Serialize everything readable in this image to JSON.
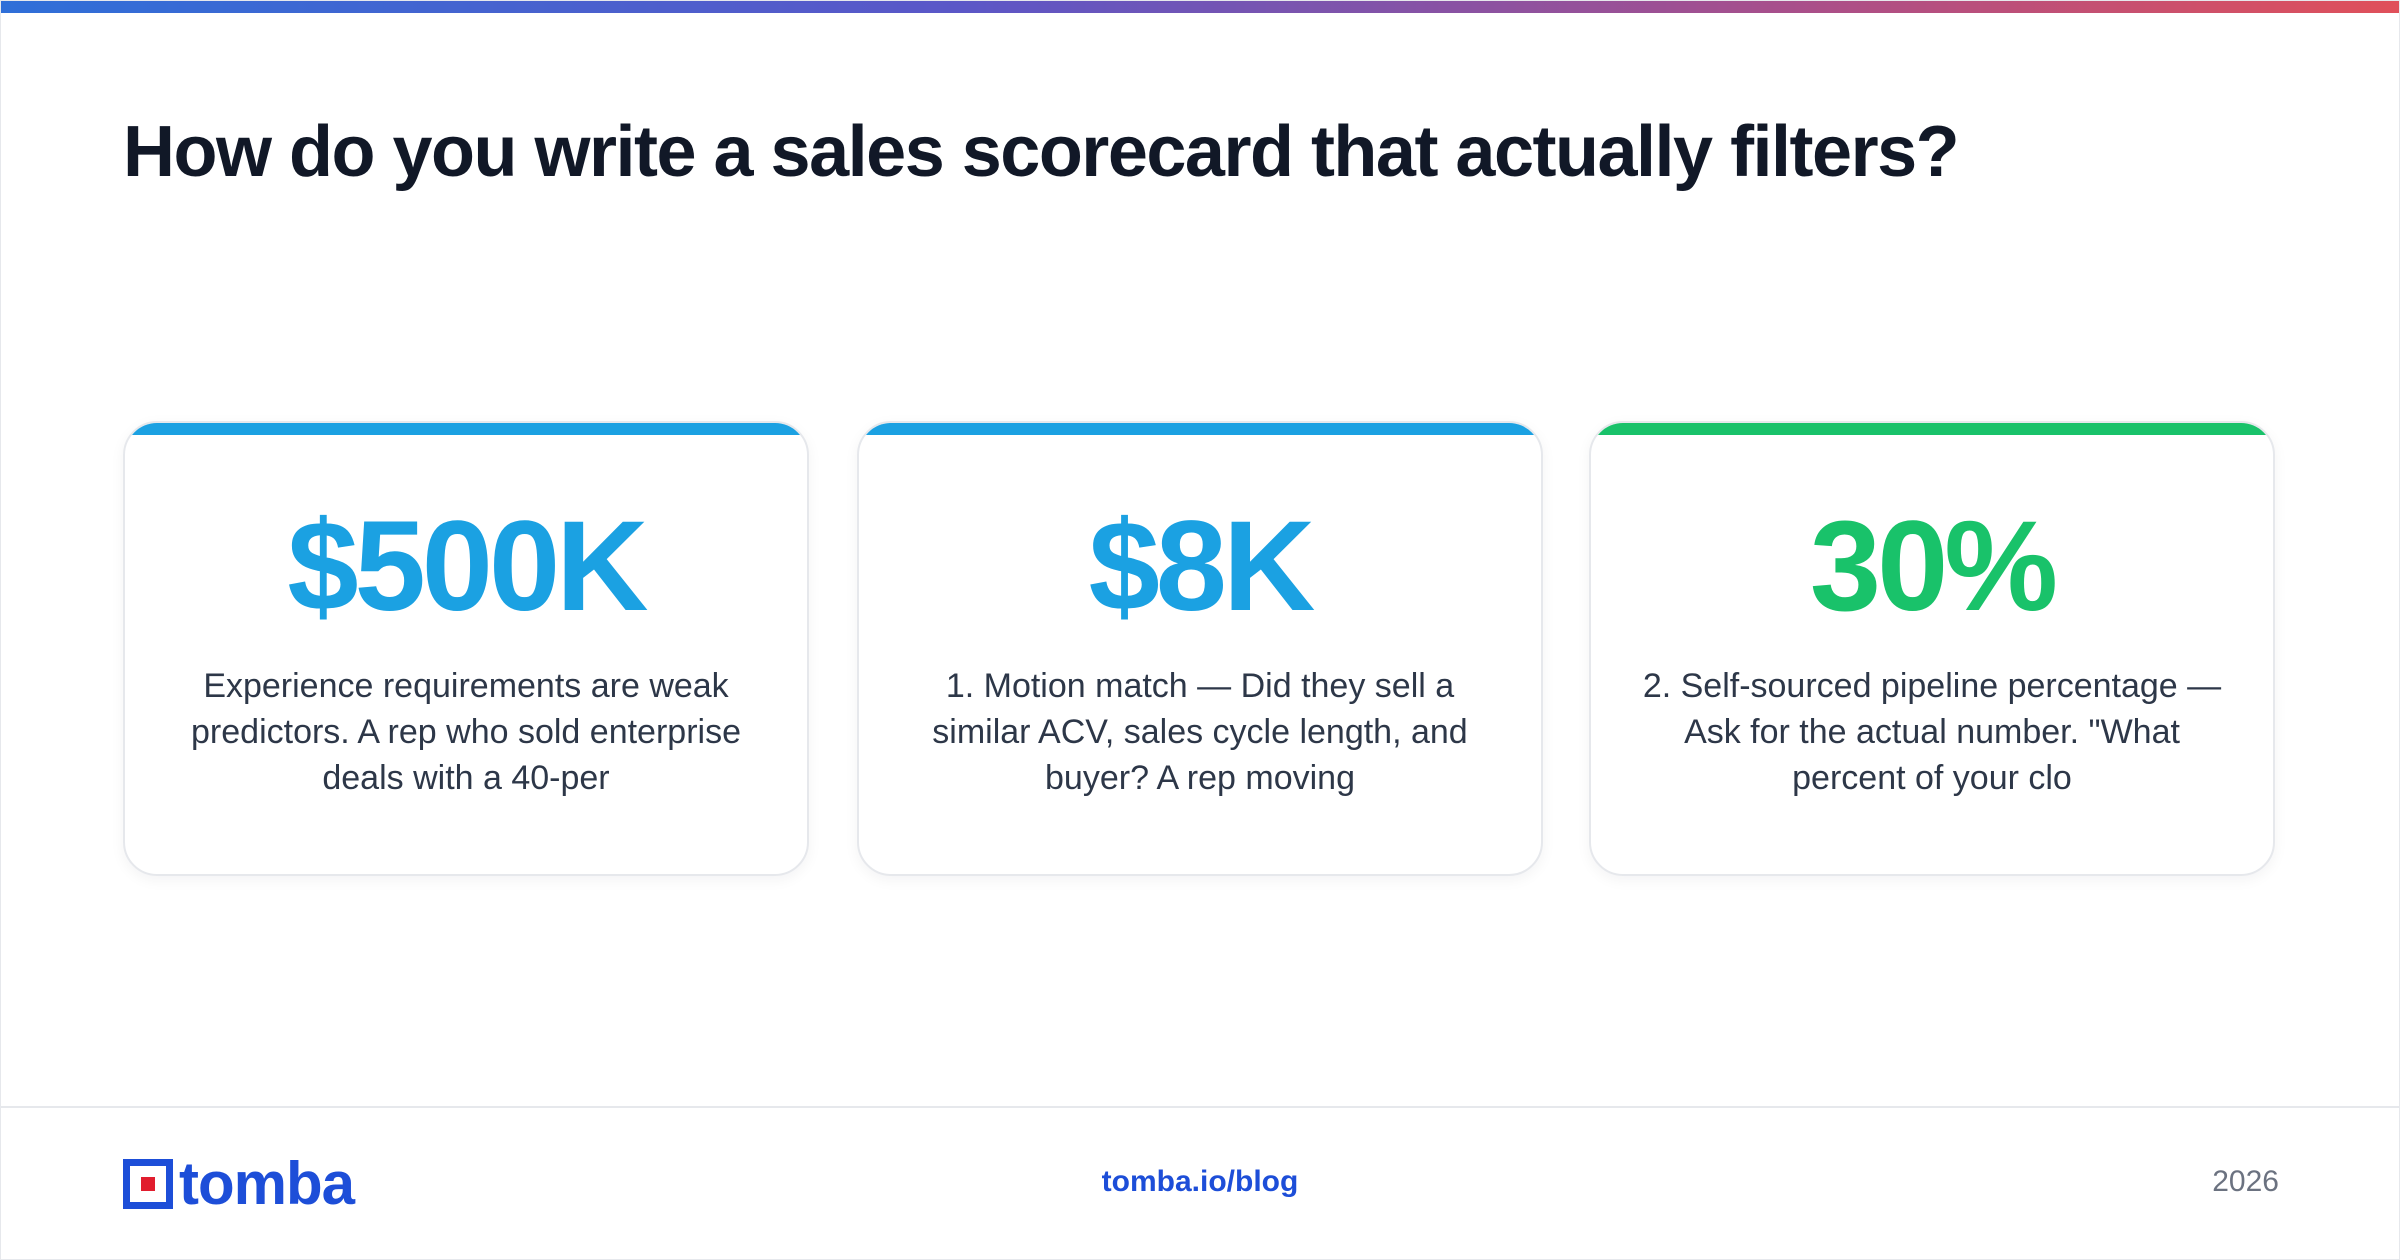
{
  "header": {
    "title": "How do you write a sales scorecard that actually filters?"
  },
  "cards": [
    {
      "stat": "$500K",
      "description": "Experience requirements are weak predictors. A rep who sold enterprise deals with a 40-per",
      "accent_color": "#1ba1e2"
    },
    {
      "stat": "$8K",
      "description": "1. Motion match — Did they sell a similar ACV, sales cycle length, and buyer? A rep moving",
      "accent_color": "#1ba1e2"
    },
    {
      "stat": "30%",
      "description": "2. Self-sourced pipeline percentage — Ask for the actual number. \"What percent of your clo",
      "accent_color": "#19c26a"
    }
  ],
  "footer": {
    "logo_text": "tomba",
    "link": "tomba.io/blog",
    "year": "2026"
  },
  "colors": {
    "primary_blue": "#1d4ed8",
    "stat_blue": "#1ba1e2",
    "stat_green": "#19c26a",
    "logo_red": "#e11d2e",
    "title": "#111827"
  }
}
